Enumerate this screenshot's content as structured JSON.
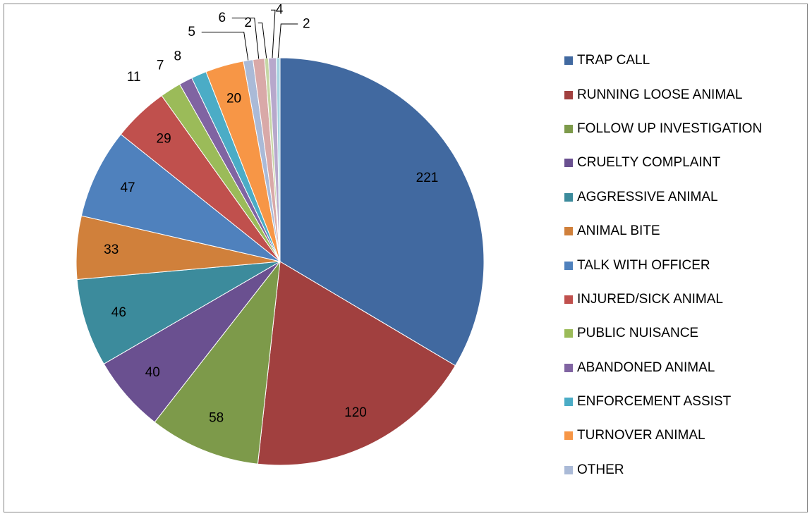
{
  "chart_data": {
    "type": "pie",
    "title": "",
    "slices": [
      {
        "label": "TRAP CALL",
        "value": 221,
        "color": "#4169A0"
      },
      {
        "label": "RUNNING LOOSE ANIMAL",
        "value": 120,
        "color": "#A1403F"
      },
      {
        "label": "FOLLOW UP INVESTIGATION",
        "value": 58,
        "color": "#7D9A4A"
      },
      {
        "label": "CRUELTY COMPLAINT",
        "value": 40,
        "color": "#6A5090"
      },
      {
        "label": "AGGRESSIVE ANIMAL",
        "value": 46,
        "color": "#3C8B9C"
      },
      {
        "label": "ANIMAL BITE",
        "value": 33,
        "color": "#D0803B"
      },
      {
        "label": "TALK WITH OFFICER",
        "value": 47,
        "color": "#4F81BD"
      },
      {
        "label": "INJURED/SICK ANIMAL",
        "value": 29,
        "color": "#C0504D"
      },
      {
        "label": "PUBLIC NUISANCE",
        "value": 11,
        "color": "#9BBB59"
      },
      {
        "label": "ABANDONED ANIMAL",
        "value": 7,
        "color": "#8064A2"
      },
      {
        "label": "ENFORCEMENT ASSIST",
        "value": 8,
        "color": "#4BACC6"
      },
      {
        "label": "TURNOVER ANIMAL",
        "value": 20,
        "color": "#F79646"
      },
      {
        "label": "OTHER",
        "value": 5,
        "color": "#AABAD7"
      },
      {
        "label": "",
        "value": 6,
        "color": "#D9A9A8"
      },
      {
        "label": "",
        "value": 2,
        "color": "#C6D6A5"
      },
      {
        "label": "",
        "value": 4,
        "color": "#B7A8CC"
      },
      {
        "label": "",
        "value": 2,
        "color": "#A5D3E0"
      }
    ],
    "legend_position": "right"
  }
}
